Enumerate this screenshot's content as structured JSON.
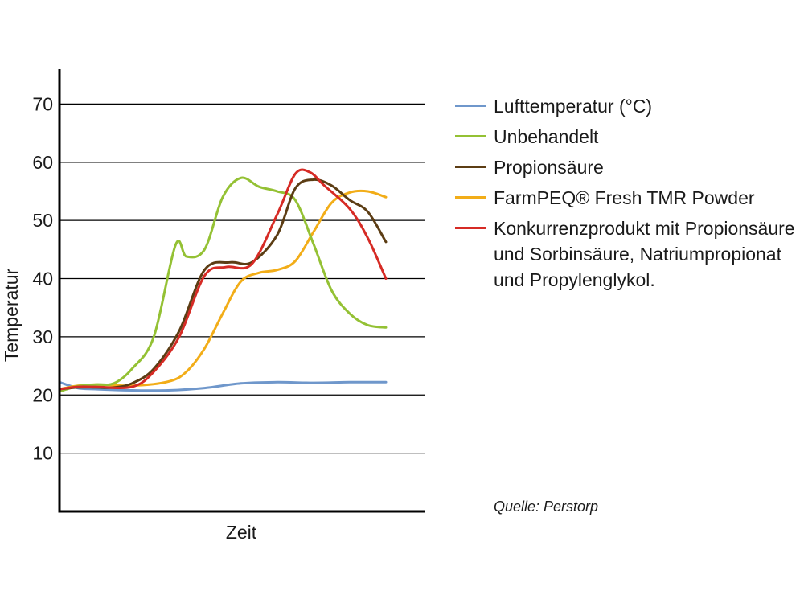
{
  "chart_data": {
    "type": "line",
    "ylabel": "Temperatur",
    "xlabel": "Zeit",
    "ylim": [
      0,
      76
    ],
    "yticks": [
      10,
      20,
      30,
      40,
      50,
      60,
      70
    ],
    "xlim": [
      0,
      10
    ],
    "grid": "horizontal",
    "legend_position": "right",
    "series": [
      {
        "name": "Lufttemperatur (°C)",
        "color": "#6f97cb",
        "x": [
          0,
          0.5,
          1,
          2,
          3,
          4,
          5,
          6,
          7,
          8,
          9
        ],
        "y": [
          22.2,
          21.2,
          21.0,
          20.8,
          20.8,
          21.2,
          22.0,
          22.2,
          22.1,
          22.2,
          22.2
        ]
      },
      {
        "name": "Unbehandelt",
        "color": "#94c134",
        "x": [
          0,
          0.5,
          1,
          1.5,
          2,
          2.6,
          3.2,
          3.5,
          4,
          4.5,
          5,
          5.5,
          6,
          6.5,
          7,
          7.5,
          8,
          8.5,
          9
        ],
        "y": [
          20.6,
          21.5,
          21.8,
          22.0,
          24.5,
          30.0,
          45.8,
          43.8,
          45.0,
          54.0,
          57.3,
          55.8,
          55.0,
          53.5,
          46.0,
          38.0,
          34.0,
          32.0,
          31.6
        ]
      },
      {
        "name": "Propionsäure",
        "color": "#5c3d14",
        "x": [
          0,
          0.5,
          1,
          1.5,
          2,
          2.6,
          3.3,
          4,
          4.7,
          5.3,
          6,
          6.5,
          7,
          7.5,
          8,
          8.5,
          9
        ],
        "y": [
          21.0,
          21.3,
          21.3,
          21.3,
          22.0,
          24.5,
          31.0,
          41.5,
          42.8,
          42.8,
          47.5,
          55.5,
          57.0,
          56.0,
          53.5,
          51.5,
          46.3
        ]
      },
      {
        "name": "FarmPEQ® Fresh TMR Powder",
        "color": "#f2ad18",
        "x": [
          0,
          0.5,
          1,
          2,
          3,
          3.5,
          4,
          4.5,
          5,
          5.5,
          6,
          6.5,
          7,
          7.5,
          8,
          8.5,
          9
        ],
        "y": [
          21.0,
          21.6,
          21.8,
          21.6,
          22.3,
          24.0,
          28.0,
          34.0,
          39.5,
          41.0,
          41.5,
          43.0,
          48.0,
          53.0,
          54.8,
          55.0,
          54.0
        ]
      },
      {
        "name": "Konkurrenzprodukt mit Propionsäure und Sorbinsäure, Natriumpropionat und Propylenglykol.",
        "color": "#d62b25",
        "x": [
          0,
          0.5,
          1,
          2,
          2.6,
          3.3,
          4,
          4.6,
          5.3,
          6,
          6.5,
          6.9,
          7.3,
          8,
          8.5,
          9
        ],
        "y": [
          21.0,
          21.4,
          21.4,
          21.4,
          24.0,
          30.0,
          40.5,
          42.0,
          42.5,
          51.0,
          58.0,
          58.3,
          56.0,
          52.0,
          47.0,
          40.0
        ]
      }
    ]
  },
  "source": "Quelle: Perstorp"
}
